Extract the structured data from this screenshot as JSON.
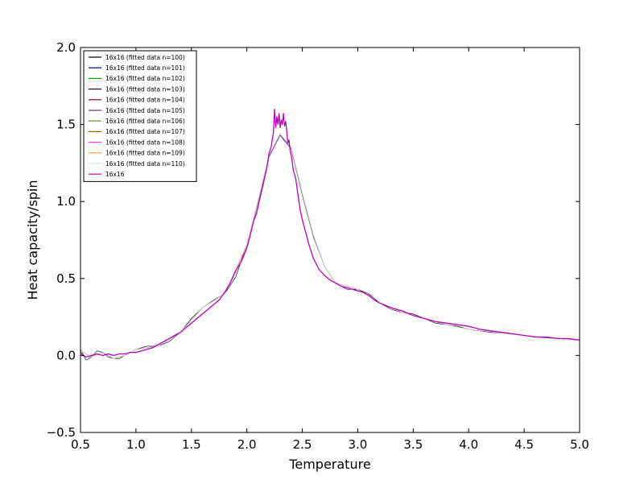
{
  "chart_data": {
    "type": "line",
    "title": "",
    "xlabel": "Temperature",
    "ylabel": "Heat capacity/spin",
    "xlim": [
      0.5,
      5.0
    ],
    "ylim": [
      -0.5,
      2.0
    ],
    "xticks": [
      0.5,
      1.0,
      1.5,
      2.0,
      2.5,
      3.0,
      3.5,
      4.0,
      4.5,
      5.0
    ],
    "xtick_labels": [
      "0.5",
      "1.0",
      "1.5",
      "2.0",
      "2.5",
      "3.0",
      "3.5",
      "4.0",
      "4.5",
      "5.0"
    ],
    "yticks": [
      -0.5,
      0.0,
      0.5,
      1.0,
      1.5,
      2.0
    ],
    "ytick_labels": [
      "−0.5",
      "0.0",
      "0.5",
      "1.0",
      "1.5",
      "2.0"
    ],
    "grid": false,
    "legend_position": "top-left",
    "series": [
      {
        "name": "16x16 (fitted data n=100)",
        "color": "#000000",
        "style": "fit",
        "x": [
          0.5,
          0.55,
          0.6,
          0.65,
          0.7,
          0.75,
          0.8,
          0.85,
          0.9,
          1.0,
          1.1,
          1.2,
          1.3,
          1.4,
          1.5,
          1.6,
          1.7,
          1.8,
          1.9,
          2.0,
          2.1,
          2.2,
          2.3,
          2.4,
          2.5,
          2.6,
          2.7,
          2.8,
          2.9,
          3.0,
          3.1,
          3.2,
          3.3,
          3.4,
          3.5,
          3.6,
          3.7,
          3.8,
          3.9,
          4.0,
          4.2,
          4.4,
          4.6,
          4.8,
          5.0
        ],
        "y": [
          0.04,
          -0.03,
          -0.01,
          0.03,
          0.02,
          -0.01,
          -0.02,
          -0.02,
          0.0,
          0.04,
          0.06,
          0.06,
          0.09,
          0.15,
          0.24,
          0.31,
          0.36,
          0.4,
          0.51,
          0.72,
          1.0,
          1.3,
          1.44,
          1.35,
          1.05,
          0.78,
          0.58,
          0.47,
          0.43,
          0.43,
          0.4,
          0.34,
          0.3,
          0.28,
          0.27,
          0.24,
          0.21,
          0.2,
          0.19,
          0.17,
          0.15,
          0.14,
          0.12,
          0.11,
          0.1
        ]
      },
      {
        "name": "16x16 (fitted data n=101)",
        "color": "#000080",
        "style": "fit",
        "x": [
          0.5,
          0.6,
          0.7,
          0.8,
          0.9,
          1.0,
          1.2,
          1.4,
          1.6,
          1.8,
          2.0,
          2.1,
          2.2,
          2.3,
          2.4,
          2.5,
          2.6,
          2.7,
          2.8,
          3.0,
          3.2,
          3.4,
          3.6,
          3.8,
          4.0,
          4.5,
          5.0
        ],
        "y": [
          0.03,
          -0.01,
          0.02,
          -0.02,
          0.0,
          0.04,
          0.06,
          0.15,
          0.31,
          0.4,
          0.71,
          0.99,
          1.29,
          1.43,
          1.34,
          1.04,
          0.77,
          0.58,
          0.47,
          0.43,
          0.34,
          0.28,
          0.24,
          0.2,
          0.17,
          0.13,
          0.1
        ]
      },
      {
        "name": "16x16 (fitted data n=102)",
        "color": "#00a000",
        "style": "fit",
        "x": [
          0.5,
          0.6,
          0.7,
          0.8,
          0.9,
          1.0,
          1.2,
          1.4,
          1.6,
          1.8,
          2.0,
          2.1,
          2.2,
          2.3,
          2.4,
          2.5,
          2.6,
          2.7,
          2.8,
          3.0,
          3.2,
          3.4,
          3.6,
          3.8,
          4.0,
          4.5,
          5.0
        ],
        "y": [
          0.03,
          -0.01,
          0.02,
          -0.02,
          0.0,
          0.04,
          0.06,
          0.15,
          0.31,
          0.4,
          0.72,
          1.0,
          1.3,
          1.44,
          1.35,
          1.05,
          0.78,
          0.58,
          0.47,
          0.43,
          0.34,
          0.28,
          0.24,
          0.2,
          0.17,
          0.13,
          0.1
        ]
      },
      {
        "name": "16x16 (fitted data n=103)",
        "color": "#2b0000",
        "style": "fit",
        "x": [
          0.5,
          0.6,
          0.7,
          0.8,
          0.9,
          1.0,
          1.2,
          1.4,
          1.6,
          1.8,
          2.0,
          2.1,
          2.2,
          2.3,
          2.4,
          2.5,
          2.6,
          2.7,
          2.8,
          3.0,
          3.2,
          3.4,
          3.6,
          3.8,
          4.0,
          4.5,
          5.0
        ],
        "y": [
          0.03,
          -0.01,
          0.02,
          -0.02,
          0.0,
          0.04,
          0.06,
          0.15,
          0.31,
          0.4,
          0.71,
          1.0,
          1.3,
          1.44,
          1.35,
          1.05,
          0.78,
          0.58,
          0.47,
          0.43,
          0.34,
          0.28,
          0.24,
          0.2,
          0.17,
          0.13,
          0.1
        ]
      },
      {
        "name": "16x16 (fitted data n=104)",
        "color": "#800020",
        "style": "fit",
        "x": [
          0.5,
          0.6,
          0.7,
          0.8,
          0.9,
          1.0,
          1.2,
          1.4,
          1.6,
          1.8,
          2.0,
          2.1,
          2.2,
          2.3,
          2.4,
          2.5,
          2.6,
          2.7,
          2.8,
          3.0,
          3.2,
          3.4,
          3.6,
          3.8,
          4.0,
          4.5,
          5.0
        ],
        "y": [
          0.03,
          -0.01,
          0.02,
          -0.02,
          0.0,
          0.04,
          0.06,
          0.15,
          0.31,
          0.4,
          0.72,
          1.0,
          1.3,
          1.44,
          1.35,
          1.05,
          0.78,
          0.58,
          0.47,
          0.43,
          0.34,
          0.28,
          0.24,
          0.2,
          0.17,
          0.13,
          0.1
        ]
      },
      {
        "name": "16x16 (fitted data n=105)",
        "color": "#7030a0",
        "style": "fit",
        "x": [
          0.5,
          0.6,
          0.7,
          0.8,
          0.9,
          1.0,
          1.2,
          1.4,
          1.6,
          1.8,
          2.0,
          2.1,
          2.2,
          2.3,
          2.4,
          2.5,
          2.6,
          2.7,
          2.8,
          3.0,
          3.2,
          3.4,
          3.6,
          3.8,
          4.0,
          4.5,
          5.0
        ],
        "y": [
          0.03,
          -0.01,
          0.02,
          -0.02,
          0.0,
          0.04,
          0.06,
          0.15,
          0.31,
          0.4,
          0.71,
          0.99,
          1.29,
          1.43,
          1.35,
          1.05,
          0.78,
          0.58,
          0.47,
          0.43,
          0.34,
          0.28,
          0.24,
          0.2,
          0.17,
          0.13,
          0.1
        ]
      },
      {
        "name": "16x16 (fitted data n=106)",
        "color": "#6b8e23",
        "style": "fit",
        "x": [
          0.5,
          0.6,
          0.7,
          0.8,
          0.9,
          1.0,
          1.2,
          1.4,
          1.6,
          1.8,
          2.0,
          2.1,
          2.2,
          2.3,
          2.4,
          2.5,
          2.6,
          2.7,
          2.8,
          3.0,
          3.2,
          3.4,
          3.6,
          3.8,
          4.0,
          4.5,
          5.0
        ],
        "y": [
          0.03,
          -0.01,
          0.02,
          -0.02,
          0.0,
          0.04,
          0.06,
          0.15,
          0.31,
          0.4,
          0.72,
          1.0,
          1.3,
          1.44,
          1.35,
          1.05,
          0.78,
          0.58,
          0.47,
          0.43,
          0.34,
          0.28,
          0.24,
          0.2,
          0.17,
          0.13,
          0.1
        ]
      },
      {
        "name": "16x16 (fitted data n=107)",
        "color": "#996600",
        "style": "fit",
        "x": [
          0.5,
          0.6,
          0.7,
          0.8,
          0.9,
          1.0,
          1.2,
          1.4,
          1.6,
          1.8,
          2.0,
          2.1,
          2.2,
          2.3,
          2.4,
          2.5,
          2.6,
          2.7,
          2.8,
          3.0,
          3.2,
          3.4,
          3.6,
          3.8,
          4.0,
          4.5,
          5.0
        ],
        "y": [
          0.03,
          -0.01,
          0.02,
          -0.02,
          0.0,
          0.04,
          0.06,
          0.15,
          0.31,
          0.4,
          0.71,
          1.0,
          1.3,
          1.44,
          1.35,
          1.05,
          0.78,
          0.58,
          0.47,
          0.43,
          0.34,
          0.28,
          0.24,
          0.2,
          0.17,
          0.13,
          0.1
        ]
      },
      {
        "name": "16x16 (fitted data n=108)",
        "color": "#ff33ff",
        "style": "fit",
        "x": [
          0.5,
          0.6,
          0.7,
          0.8,
          0.9,
          1.0,
          1.2,
          1.4,
          1.6,
          1.8,
          2.0,
          2.1,
          2.2,
          2.3,
          2.4,
          2.5,
          2.6,
          2.7,
          2.8,
          3.0,
          3.2,
          3.4,
          3.6,
          3.8,
          4.0,
          4.5,
          5.0
        ],
        "y": [
          0.03,
          -0.01,
          0.02,
          -0.02,
          0.0,
          0.04,
          0.06,
          0.15,
          0.31,
          0.4,
          0.72,
          1.0,
          1.3,
          1.44,
          1.35,
          1.05,
          0.78,
          0.58,
          0.47,
          0.43,
          0.34,
          0.28,
          0.24,
          0.2,
          0.17,
          0.13,
          0.1
        ]
      },
      {
        "name": "16x16 (fitted data n=109)",
        "color": "#ffa040",
        "style": "fit",
        "x": [
          0.5,
          0.6,
          0.7,
          0.8,
          0.9,
          1.0,
          1.2,
          1.4,
          1.6,
          1.8,
          2.0,
          2.1,
          2.2,
          2.3,
          2.4,
          2.5,
          2.6,
          2.7,
          2.8,
          3.0,
          3.2,
          3.4,
          3.6,
          3.8,
          4.0,
          4.5,
          5.0
        ],
        "y": [
          0.03,
          -0.01,
          0.02,
          -0.02,
          0.0,
          0.04,
          0.06,
          0.15,
          0.31,
          0.4,
          0.71,
          1.0,
          1.3,
          1.44,
          1.35,
          1.05,
          0.78,
          0.58,
          0.47,
          0.43,
          0.34,
          0.28,
          0.24,
          0.2,
          0.17,
          0.13,
          0.1
        ]
      },
      {
        "name": "16x16 (fitted data n=110)",
        "color": "#c8f0f0",
        "style": "fit",
        "x": [
          0.5,
          0.6,
          0.7,
          0.8,
          0.9,
          1.0,
          1.2,
          1.4,
          1.6,
          1.8,
          2.0,
          2.1,
          2.2,
          2.3,
          2.4,
          2.5,
          2.6,
          2.7,
          2.8,
          3.0,
          3.2,
          3.4,
          3.6,
          3.8,
          4.0,
          4.5,
          5.0
        ],
        "y": [
          0.03,
          -0.01,
          0.02,
          -0.02,
          0.0,
          0.04,
          0.06,
          0.15,
          0.31,
          0.4,
          0.72,
          1.0,
          1.3,
          1.44,
          1.35,
          1.05,
          0.78,
          0.58,
          0.47,
          0.43,
          0.34,
          0.28,
          0.24,
          0.2,
          0.17,
          0.13,
          0.1
        ]
      },
      {
        "name": "16x16",
        "color": "#bf00bf",
        "style": "data",
        "x": [
          0.5,
          0.52,
          0.55,
          0.6,
          0.65,
          0.7,
          0.75,
          0.8,
          0.85,
          0.9,
          0.95,
          1.0,
          1.05,
          1.1,
          1.15,
          1.2,
          1.25,
          1.3,
          1.35,
          1.4,
          1.45,
          1.5,
          1.55,
          1.6,
          1.65,
          1.7,
          1.75,
          1.8,
          1.85,
          1.9,
          1.95,
          2.0,
          2.03,
          2.06,
          2.09,
          2.12,
          2.15,
          2.18,
          2.2,
          2.22,
          2.24,
          2.25,
          2.26,
          2.27,
          2.28,
          2.29,
          2.3,
          2.31,
          2.32,
          2.33,
          2.34,
          2.35,
          2.36,
          2.37,
          2.38,
          2.39,
          2.4,
          2.42,
          2.44,
          2.46,
          2.48,
          2.5,
          2.53,
          2.56,
          2.6,
          2.65,
          2.7,
          2.75,
          2.8,
          2.85,
          2.9,
          2.95,
          3.0,
          3.05,
          3.1,
          3.15,
          3.2,
          3.3,
          3.4,
          3.5,
          3.6,
          3.7,
          3.8,
          3.9,
          4.0,
          4.1,
          4.2,
          4.3,
          4.4,
          4.5,
          4.6,
          4.7,
          4.8,
          4.9,
          5.0
        ],
        "y": [
          0.02,
          0.0,
          -0.01,
          0.0,
          0.01,
          0.0,
          0.01,
          0.0,
          0.01,
          0.01,
          0.02,
          0.02,
          0.03,
          0.04,
          0.05,
          0.07,
          0.09,
          0.11,
          0.13,
          0.15,
          0.18,
          0.21,
          0.24,
          0.27,
          0.3,
          0.33,
          0.36,
          0.41,
          0.47,
          0.55,
          0.61,
          0.7,
          0.78,
          0.87,
          0.93,
          1.03,
          1.12,
          1.22,
          1.31,
          1.36,
          1.45,
          1.6,
          1.48,
          1.55,
          1.5,
          1.57,
          1.48,
          1.53,
          1.5,
          1.57,
          1.49,
          1.52,
          1.45,
          1.38,
          1.4,
          1.33,
          1.3,
          1.2,
          1.15,
          1.05,
          0.95,
          0.88,
          0.8,
          0.72,
          0.63,
          0.56,
          0.52,
          0.49,
          0.47,
          0.45,
          0.44,
          0.43,
          0.42,
          0.41,
          0.39,
          0.36,
          0.34,
          0.31,
          0.29,
          0.26,
          0.24,
          0.22,
          0.21,
          0.2,
          0.19,
          0.17,
          0.16,
          0.15,
          0.14,
          0.13,
          0.12,
          0.12,
          0.11,
          0.11,
          0.1
        ]
      }
    ]
  }
}
